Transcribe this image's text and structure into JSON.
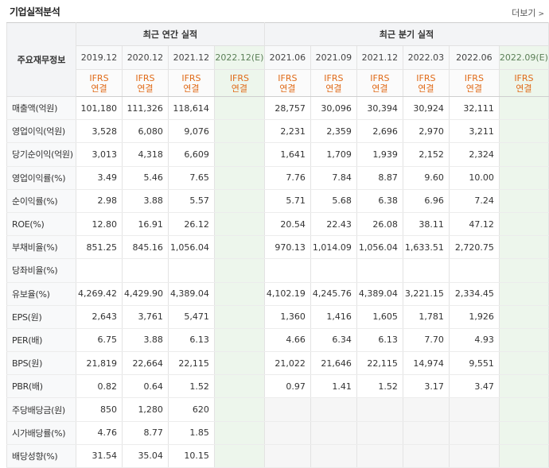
{
  "section": {
    "title": "기업실적분석",
    "more_label": "더보기"
  },
  "headers": {
    "row_label": "주요재무정보",
    "annual_group": "최근 연간 실적",
    "quarter_group": "최근 분기 실적",
    "annual_periods": [
      "2019.12",
      "2020.12",
      "2021.12",
      "2022.12(E)"
    ],
    "quarter_periods": [
      "2021.06",
      "2021.09",
      "2021.12",
      "2022.03",
      "2022.06",
      "2022.09(E)"
    ],
    "basis_line1": "IFRS",
    "basis_line2": "연결"
  },
  "rows": [
    {
      "label": "매출액(억원)",
      "annual": [
        "101,180",
        "111,326",
        "118,614",
        ""
      ],
      "quarter": [
        "28,757",
        "30,096",
        "30,394",
        "30,924",
        "32,111",
        ""
      ]
    },
    {
      "label": "영업이익(억원)",
      "annual": [
        "3,528",
        "6,080",
        "9,076",
        ""
      ],
      "quarter": [
        "2,231",
        "2,359",
        "2,696",
        "2,970",
        "3,211",
        ""
      ]
    },
    {
      "label": "당기순이익(억원)",
      "annual": [
        "3,013",
        "4,318",
        "6,609",
        ""
      ],
      "quarter": [
        "1,641",
        "1,709",
        "1,939",
        "2,152",
        "2,324",
        ""
      ]
    },
    {
      "label": "영업이익률(%)",
      "annual": [
        "3.49",
        "5.46",
        "7.65",
        ""
      ],
      "quarter": [
        "7.76",
        "7.84",
        "8.87",
        "9.60",
        "10.00",
        ""
      ]
    },
    {
      "label": "순이익률(%)",
      "annual": [
        "2.98",
        "3.88",
        "5.57",
        ""
      ],
      "quarter": [
        "5.71",
        "5.68",
        "6.38",
        "6.96",
        "7.24",
        ""
      ]
    },
    {
      "label": "ROE(%)",
      "annual": [
        "12.80",
        "16.91",
        "26.12",
        ""
      ],
      "quarter": [
        "20.54",
        "22.43",
        "26.08",
        "38.11",
        "47.12",
        ""
      ]
    },
    {
      "label": "부채비율(%)",
      "annual": [
        "851.25",
        "845.16",
        "1,056.04",
        ""
      ],
      "quarter": [
        "970.13",
        "1,014.09",
        "1,056.04",
        "1,633.51",
        "2,720.75",
        ""
      ]
    },
    {
      "label": "당좌비율(%)",
      "annual": [
        "",
        "",
        "",
        ""
      ],
      "quarter": [
        "",
        "",
        "",
        "",
        "",
        ""
      ]
    },
    {
      "label": "유보율(%)",
      "annual": [
        "4,269.42",
        "4,429.90",
        "4,389.04",
        ""
      ],
      "quarter": [
        "4,102.19",
        "4,245.76",
        "4,389.04",
        "3,221.15",
        "2,334.45",
        ""
      ]
    },
    {
      "label": "EPS(원)",
      "annual": [
        "2,643",
        "3,761",
        "5,471",
        ""
      ],
      "quarter": [
        "1,360",
        "1,416",
        "1,605",
        "1,781",
        "1,926",
        ""
      ]
    },
    {
      "label": "PER(배)",
      "annual": [
        "6.75",
        "3.88",
        "6.13",
        ""
      ],
      "quarter": [
        "4.66",
        "6.34",
        "6.13",
        "7.70",
        "4.93",
        ""
      ]
    },
    {
      "label": "BPS(원)",
      "annual": [
        "21,819",
        "22,664",
        "22,115",
        ""
      ],
      "quarter": [
        "21,022",
        "21,646",
        "22,115",
        "14,974",
        "9,551",
        ""
      ]
    },
    {
      "label": "PBR(배)",
      "annual": [
        "0.82",
        "0.64",
        "1.52",
        ""
      ],
      "quarter": [
        "0.97",
        "1.41",
        "1.52",
        "3.17",
        "3.47",
        ""
      ]
    },
    {
      "label": "주당배당금(원)",
      "annual": [
        "850",
        "1,280",
        "620",
        ""
      ],
      "quarter": [
        "",
        "",
        "",
        "",
        "",
        ""
      ]
    },
    {
      "label": "시가배당률(%)",
      "annual": [
        "4.76",
        "8.77",
        "1.85",
        ""
      ],
      "quarter": [
        "",
        "",
        "",
        "",
        "",
        ""
      ]
    },
    {
      "label": "배당성향(%)",
      "annual": [
        "31.54",
        "35.04",
        "10.15",
        ""
      ],
      "quarter": [
        "",
        "",
        "",
        "",
        "",
        ""
      ]
    }
  ]
}
